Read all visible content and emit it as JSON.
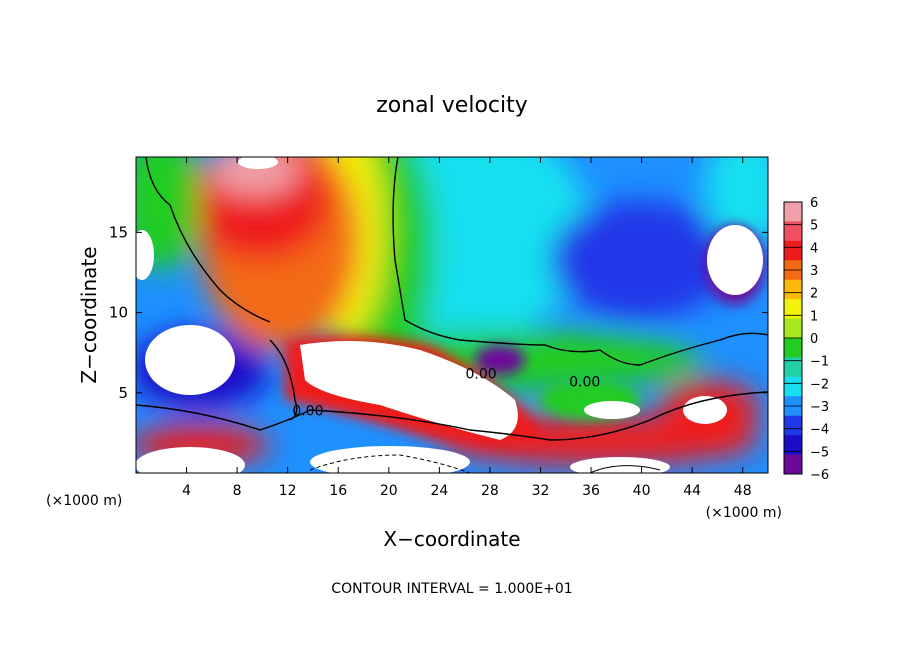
{
  "chart_data": {
    "type": "heatmap",
    "title": "zonal velocity",
    "xlabel": "X−coordinate",
    "ylabel": "Z−coordinate",
    "x_unit": "(×1000 m)",
    "z_unit": "(×1000 m)",
    "xlim": [
      0,
      50
    ],
    "ylim": [
      0,
      19.7
    ],
    "x_ticks": [
      4,
      8,
      12,
      16,
      20,
      24,
      28,
      32,
      36,
      40,
      44,
      48
    ],
    "y_ticks": [
      5,
      10,
      15
    ],
    "x_tick_labels": [
      "4",
      "8",
      "12",
      "16",
      "20",
      "24",
      "28",
      "32",
      "36",
      "40",
      "44",
      "48"
    ],
    "y_tick_labels": [
      "5",
      "10",
      "15"
    ],
    "colorbar": {
      "min": -6,
      "max": 6,
      "labels": [
        "6",
        "5",
        "4",
        "3",
        "2",
        "1",
        "0",
        "−1",
        "−2",
        "−3",
        "−4",
        "−5",
        "−6"
      ],
      "colors": [
        "#f0a0a8",
        "#f05060",
        "#ee1c1c",
        "#f36a14",
        "#fbb90c",
        "#f2f20e",
        "#a8e61e",
        "#22cc22",
        "#22d0a8",
        "#16e0f0",
        "#1e90ff",
        "#2038e8",
        "#1a0dc8",
        "#6a0a9a"
      ]
    },
    "contour_labels": [
      {
        "text": "0.00",
        "x": 13.6,
        "z": 3.6
      },
      {
        "text": "0.00",
        "x": 27.3,
        "z": 5.9
      },
      {
        "text": "0.00",
        "x": 35.5,
        "z": 5.4
      }
    ],
    "contour_interval_text": "CONTOUR INTERVAL = 1.000E+01",
    "background": "#ffffff"
  }
}
